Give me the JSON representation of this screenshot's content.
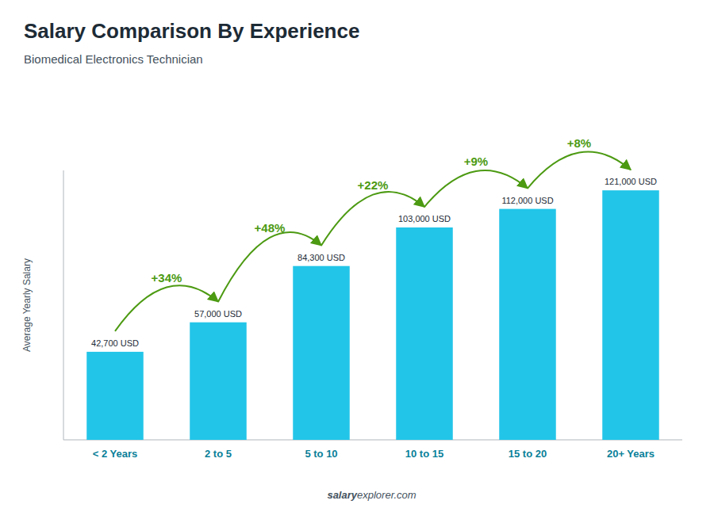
{
  "chart_data": {
    "type": "bar",
    "title": "Salary Comparison By Experience",
    "subtitle": "Biomedical Electronics Technician",
    "ylabel": "Average Yearly Salary",
    "categories": [
      "< 2 Years",
      "2 to 5",
      "5 to 10",
      "10 to 15",
      "15 to 20",
      "20+ Years"
    ],
    "values": [
      42700,
      57000,
      84300,
      103000,
      112000,
      121000
    ],
    "value_labels": [
      "42,700 USD",
      "57,000 USD",
      "84,300 USD",
      "103,000 USD",
      "112,000 USD",
      "121,000 USD"
    ],
    "data_labels": true,
    "annotations": [
      "+34%",
      "+48%",
      "+22%",
      "+9%",
      "+8%"
    ],
    "footer": [
      "salary",
      "explorer.com"
    ],
    "color": "#22c5e8",
    "ylim": [
      0,
      130680
    ],
    "yticks": [],
    "tick_labels": "x",
    "grid": false
  }
}
